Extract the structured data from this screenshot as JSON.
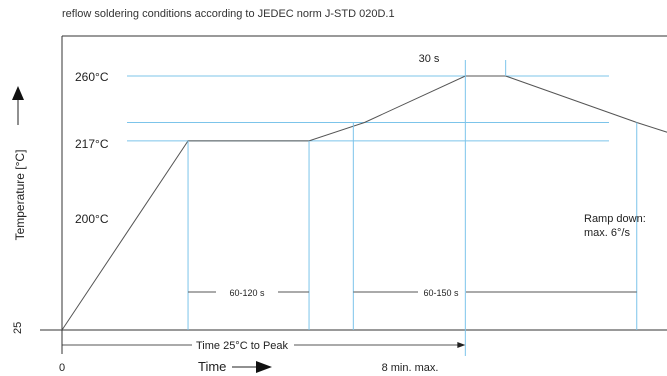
{
  "chart_data": {
    "type": "line",
    "title": "reflow soldering conditions according to JEDEC norm J-STD 020D.1",
    "ylabel": "Temperature [°C]",
    "xlabel": "Time",
    "y_levels": [
      {
        "value": 25,
        "label": "25"
      },
      {
        "value": 200,
        "label": "200°C"
      },
      {
        "value": 217,
        "label": "217°C"
      },
      {
        "value": 260,
        "label": "260°C"
      }
    ],
    "x_labels": {
      "start": "0",
      "end": "8 min. max."
    },
    "profile": [
      {
        "x": 0,
        "y": 25
      },
      {
        "x": 2.5,
        "y": 200
      },
      {
        "x": 4.9,
        "y": 200
      },
      {
        "x": 6.0,
        "y": 217
      },
      {
        "x": 8.0,
        "y": 260
      },
      {
        "x": 8.8,
        "y": 260
      },
      {
        "x": 11.4,
        "y": 217
      },
      {
        "x": 12.4,
        "y": 202
      }
    ],
    "xlim": [
      0,
      12.0
    ],
    "ylim": [
      25,
      260
    ],
    "annotations": {
      "peak_hold": "30 s",
      "soak": "60-120 s",
      "above_liquidus": "60-150 s",
      "time_to_peak": "Time 25°C to Peak",
      "ramp_down_line1": "Ramp down:",
      "ramp_down_line2": "max. 6°/s"
    },
    "grid": "horizontal reference lines at 200, 217 and 260 °C",
    "colors": {
      "profile": "#555555",
      "reference": "#7cc4ea",
      "axis": "#333333"
    }
  }
}
